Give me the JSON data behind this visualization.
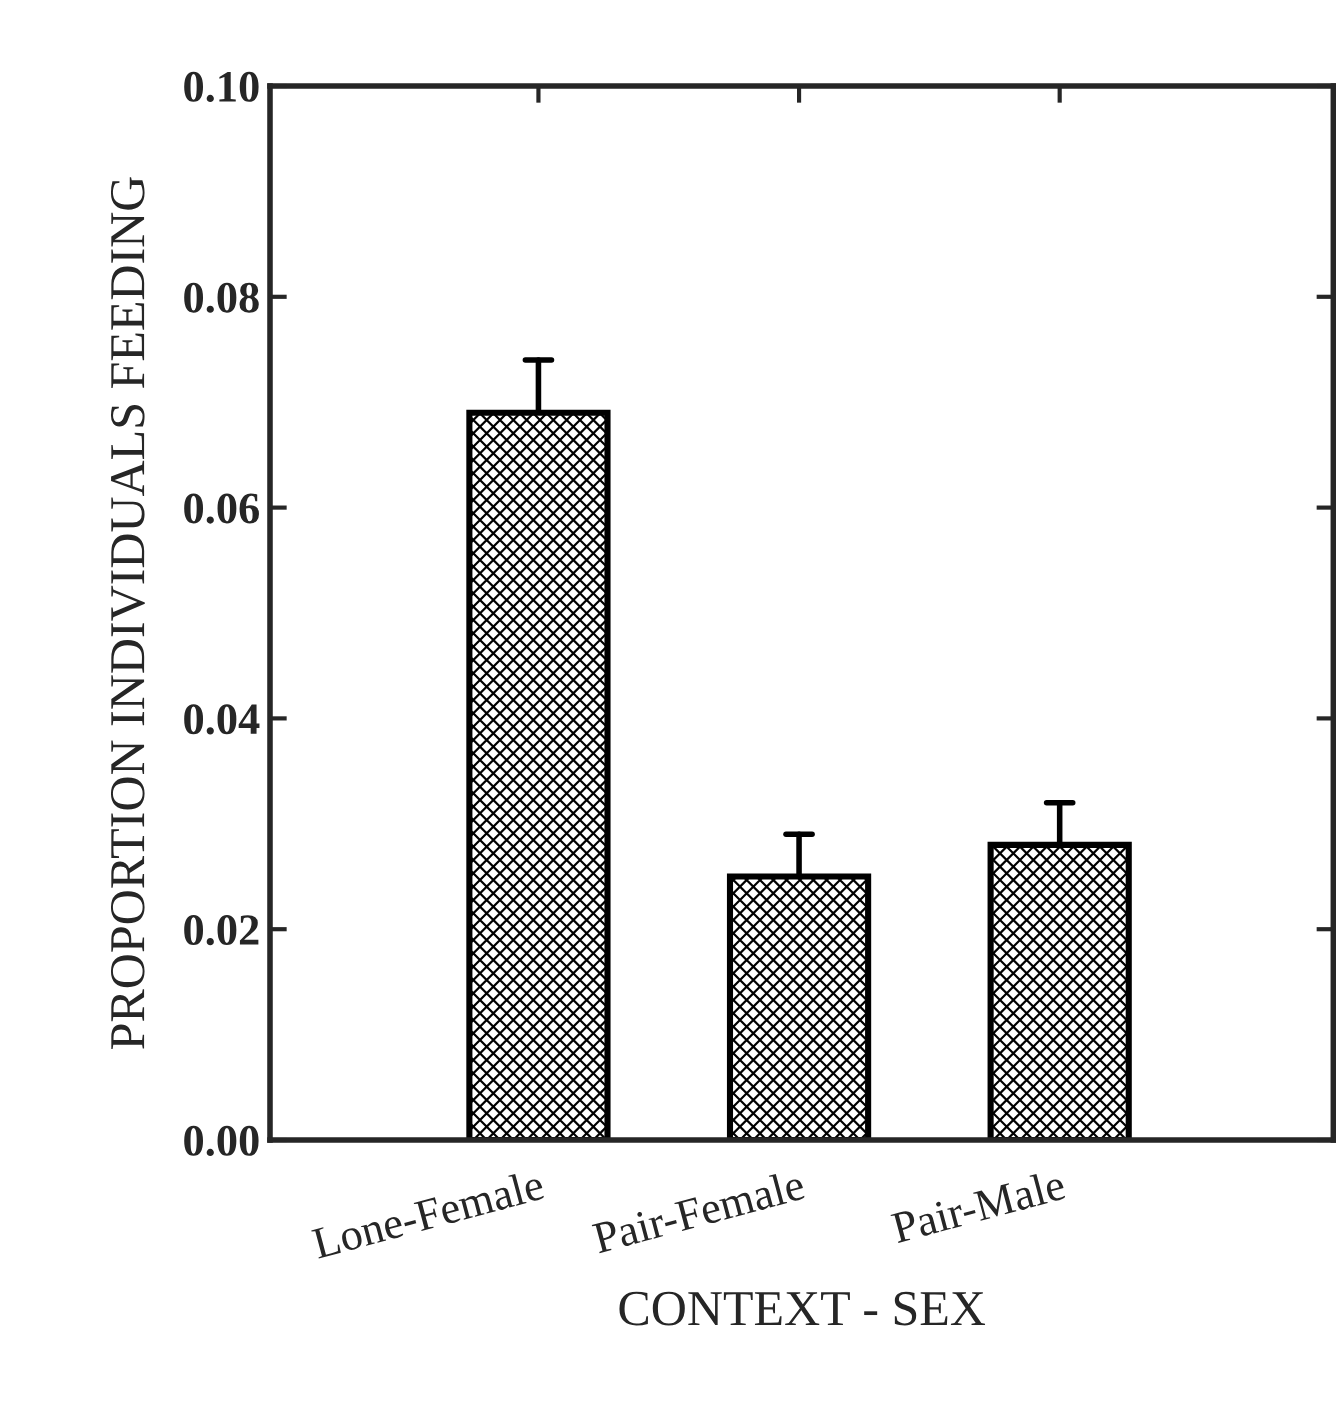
{
  "chart_data": {
    "type": "bar",
    "xlabel": "CONTEXT - SEX",
    "ylabel": "PROPORTION INDIVIDUALS FEEDING",
    "categories": [
      "Lone-Female",
      "Pair-Female",
      "Pair-Male"
    ],
    "values": [
      0.069,
      0.025,
      0.028
    ],
    "errors": [
      [
        0.069,
        0.074
      ],
      [
        0.025,
        0.029
      ],
      [
        0.028,
        0.032
      ]
    ],
    "color": "#000000",
    "ylim": [
      0,
      0.1
    ],
    "yticks": [
      {
        "value": 0,
        "label": "0.00"
      },
      {
        "value": 0.02,
        "label": "0.02"
      },
      {
        "value": 0.04,
        "label": "0.04"
      },
      {
        "value": 0.06,
        "label": "0.06"
      },
      {
        "value": 0.08,
        "label": "0.08"
      },
      {
        "value": 0.1,
        "label": "0.10"
      }
    ],
    "grid": false
  }
}
